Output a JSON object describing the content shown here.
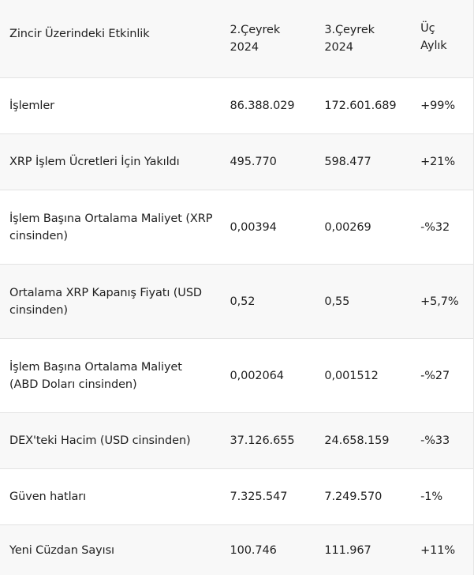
{
  "table": {
    "headers": {
      "activity": "Zincir Üzerindeki Etkinlik",
      "q2_line1": "2.Çeyrek",
      "q2_line2": "2024",
      "q3_line1": "3.Çeyrek",
      "q3_line2": "2024",
      "change_line1": "Üç",
      "change_line2": "Aylık"
    },
    "rows": [
      {
        "label": "İşlemler",
        "q2": "86.388.029",
        "q3": "172.601.689",
        "change": "+99%"
      },
      {
        "label": "XRP İşlem Ücretleri İçin Yakıldı",
        "q2": "495.770",
        "q3": "598.477",
        "change": "+21%"
      },
      {
        "label_line1": "İşlem Başına Ortalama Maliyet (XRP",
        "label_line2": "cinsinden)",
        "q2": "0,00394",
        "q3": "0,00269",
        "change": "-%32"
      },
      {
        "label_line1": "Ortalama XRP Kapanış Fiyatı (USD",
        "label_line2": "cinsinden)",
        "q2": "0,52",
        "q3": "0,55",
        "change": "+5,7%"
      },
      {
        "label_line1": "İşlem Başına Ortalama Maliyet",
        "label_line2": "(ABD Doları cinsinden)",
        "q2": "0,002064",
        "q3": "0,001512",
        "change": "-%27"
      },
      {
        "label": "DEX'teki Hacim (USD cinsinden)",
        "q2": "37.126.655",
        "q3": "24.658.159",
        "change": "-%33"
      },
      {
        "label": "Güven hatları",
        "q2": "7.325.547",
        "q3": "7.249.570",
        "change": "-1%"
      },
      {
        "label": "Yeni Cüzdan Sayısı",
        "q2": "100.746",
        "q3": "111.967",
        "change": "+11%"
      }
    ]
  }
}
